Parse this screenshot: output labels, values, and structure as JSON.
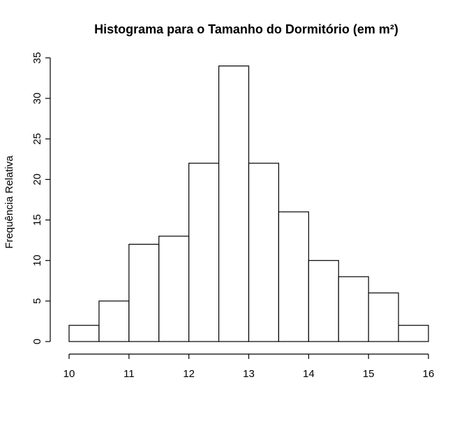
{
  "chart_data": {
    "type": "bar",
    "title": "Histograma para o Tamanho do Dormitório (em m²)",
    "xlabel": "",
    "ylabel": "Frequência Relativa",
    "bin_edges": [
      10,
      10.5,
      11,
      11.5,
      12,
      12.5,
      13,
      13.5,
      14,
      14.5,
      15,
      15.5,
      16
    ],
    "values": [
      2,
      5,
      12,
      13,
      22,
      34,
      22,
      16,
      10,
      8,
      6,
      2
    ],
    "xlim": [
      10,
      16
    ],
    "ylim": [
      0,
      35
    ],
    "x_ticks": [
      10,
      11,
      12,
      13,
      14,
      15,
      16
    ],
    "y_ticks": [
      0,
      5,
      10,
      15,
      20,
      25,
      30,
      35
    ],
    "grid": false,
    "bar_fill": "#ffffff",
    "bar_stroke": "#000000"
  }
}
